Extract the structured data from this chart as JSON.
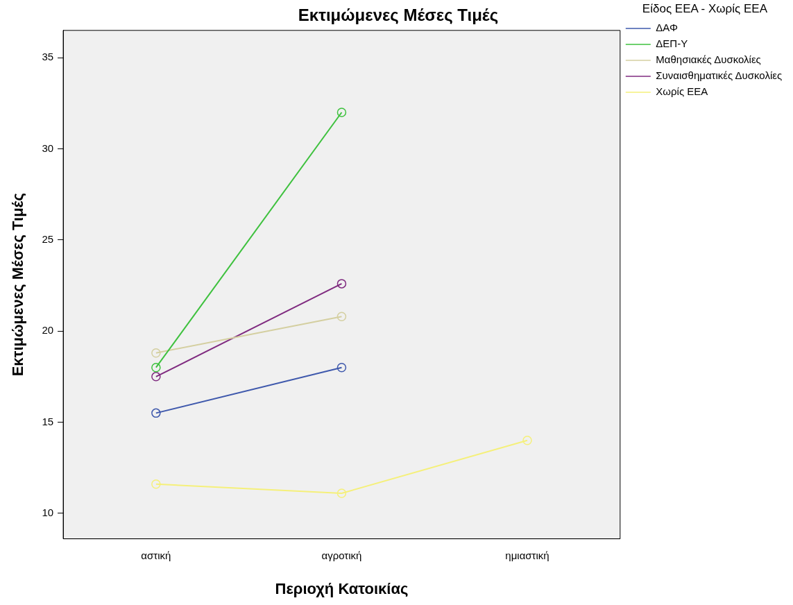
{
  "chart_data": {
    "type": "line",
    "title": "Εκτιμώμενες Μέσες Τιμές",
    "xlabel": "Περιοχή Κατοικίας",
    "ylabel": "Εκτιμώμενες Μέσες Τιμές",
    "legend_title": "Είδος ΕΕΑ - Χωρίς ΕΕΑ",
    "categories": [
      "αστική",
      "αγροτική",
      "ημιαστική"
    ],
    "series": [
      {
        "name": "ΔΑΦ",
        "color": "#3e58ac",
        "values": [
          15.5,
          18.0,
          null
        ]
      },
      {
        "name": "ΔΕΠ-Υ",
        "color": "#3ec13e",
        "values": [
          18.0,
          32.0,
          null
        ]
      },
      {
        "name": "Μαθησιακές Δυσκολίες",
        "color": "#d4cfa0",
        "values": [
          18.8,
          20.8,
          null
        ]
      },
      {
        "name": "Συναισθηματικές Δυσκολίες",
        "color": "#7f2a7f",
        "values": [
          17.5,
          22.6,
          null
        ]
      },
      {
        "name": "Χωρίς ΕΕΑ",
        "color": "#f5f07a",
        "values": [
          11.6,
          11.1,
          14.0
        ]
      }
    ],
    "ylim": [
      8.6,
      36.5
    ],
    "yticks": [
      10,
      15,
      20,
      25,
      30,
      35
    ],
    "grid": false,
    "legend": "top right",
    "marker": "circle",
    "line_style": "solid"
  }
}
